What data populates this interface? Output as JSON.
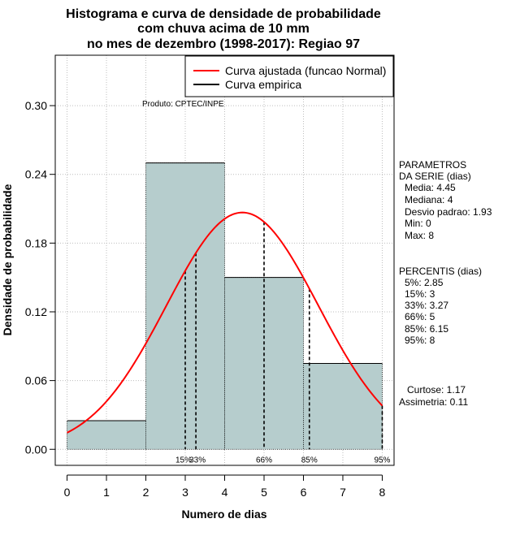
{
  "chart_data": {
    "type": "histogram",
    "title_lines": [
      "Histograma e curva de densidade de probabilidade",
      "com chuva acima de 10 mm",
      "no mes de dezembro (1998-2017): Regiao 97"
    ],
    "xlabel": "Numero de dias",
    "ylabel": "Densidade de probabilidade",
    "xlim": [
      -0.3,
      8.3
    ],
    "ylim": [
      -0.014,
      0.344
    ],
    "x_ticks": [
      0,
      1,
      2,
      3,
      4,
      5,
      6,
      7,
      8
    ],
    "x_tick_labels": [
      "0",
      "1",
      "2",
      "3",
      "4",
      "5",
      "6",
      "7",
      "8"
    ],
    "y_ticks": [
      0.0,
      0.06,
      0.12,
      0.18,
      0.24,
      0.3
    ],
    "y_tick_labels": [
      "0.00",
      "0.06",
      "0.12",
      "0.18",
      "0.24",
      "0.30"
    ],
    "bars": [
      {
        "x0": 0,
        "x1": 2,
        "density": 0.025
      },
      {
        "x0": 2,
        "x1": 4,
        "density": 0.25
      },
      {
        "x0": 4,
        "x1": 6,
        "density": 0.15
      },
      {
        "x0": 6,
        "x1": 8,
        "density": 0.075
      }
    ],
    "bar_color": "#b6cdcd",
    "fitted_curve": {
      "name": "Curva ajustada (funcao Normal)",
      "mean": 4.45,
      "sd": 1.93,
      "x_range": [
        0,
        8
      ],
      "color": "#ff0000"
    },
    "empirical_curve": {
      "name": "Curva empirica",
      "color": "#000000"
    },
    "legend_position": "top-right",
    "credit": "Produto: CPTEC/INPE",
    "percentile_markers": [
      {
        "label": "15%",
        "x": 3
      },
      {
        "label": "33%",
        "x": 3.27
      },
      {
        "label": "66%",
        "x": 5
      },
      {
        "label": "85%",
        "x": 6.15
      },
      {
        "label": "95%",
        "x": 8
      }
    ],
    "side_panel": {
      "params_title_lines": [
        "PARAMETROS",
        "DA SERIE (dias)"
      ],
      "params": [
        "Media: 4.45",
        "Mediana: 4",
        "Desvio padrao: 1.93",
        "Min: 0",
        "Max: 8"
      ],
      "percentiles_title": "PERCENTIS (dias)",
      "percentiles": [
        "5%: 2.85",
        "15%: 3",
        "33%: 3.27",
        "66%: 5",
        "85%: 6.15",
        "95%: 8"
      ],
      "stats": [
        "Curtose: 1.17",
        "Assimetria: 0.11"
      ]
    }
  }
}
